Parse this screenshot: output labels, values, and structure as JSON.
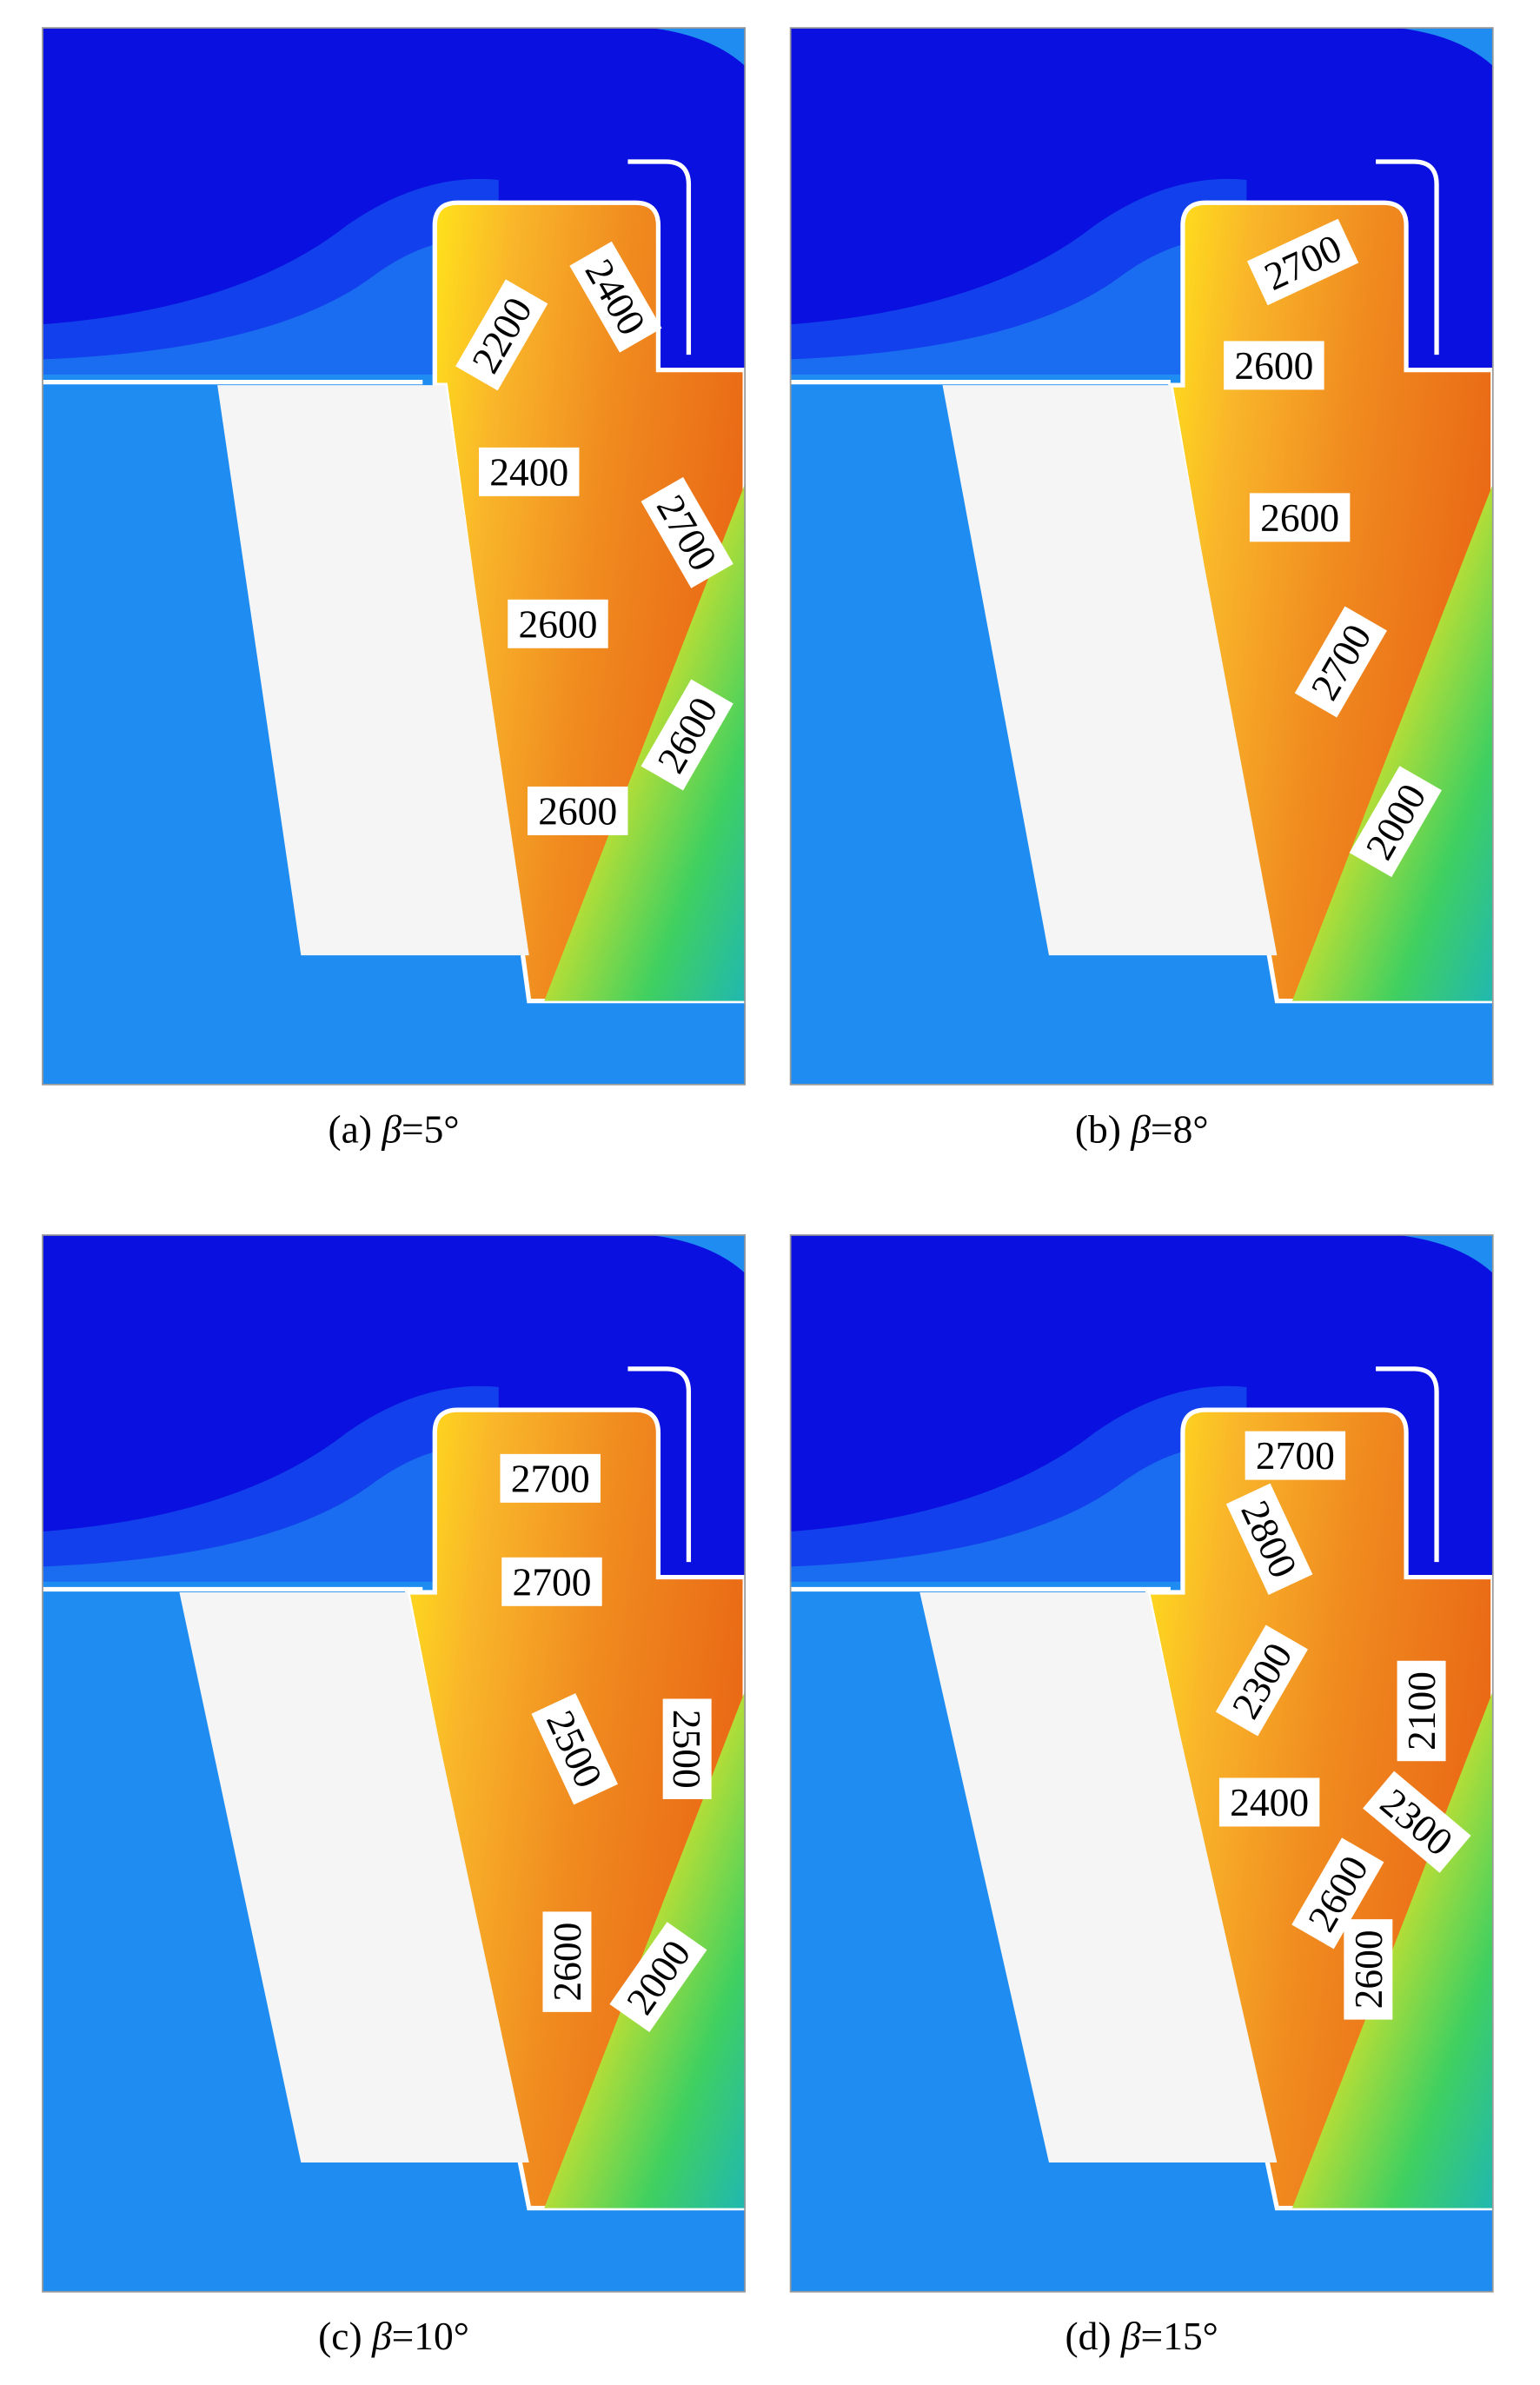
{
  "panels": [
    {
      "label": "(a)",
      "symbol": "β",
      "angle": "=5°",
      "contours": [
        "2200",
        "2400",
        "2400",
        "2700",
        "2600",
        "2600",
        "2600"
      ]
    },
    {
      "label": "(b)",
      "symbol": "β",
      "angle": "=8°",
      "contours": [
        "2700",
        "2600",
        "2600",
        "2700",
        "2000"
      ]
    },
    {
      "label": "(c)",
      "symbol": "β",
      "angle": "=10°",
      "contours": [
        "2700",
        "2700",
        "2500",
        "2500",
        "2600",
        "2000"
      ]
    },
    {
      "label": "(d)",
      "symbol": "β",
      "angle": "=15°",
      "contours": [
        "2700",
        "2800",
        "2300",
        "2100",
        "2400",
        "2300",
        "2600",
        "2600"
      ]
    }
  ]
}
